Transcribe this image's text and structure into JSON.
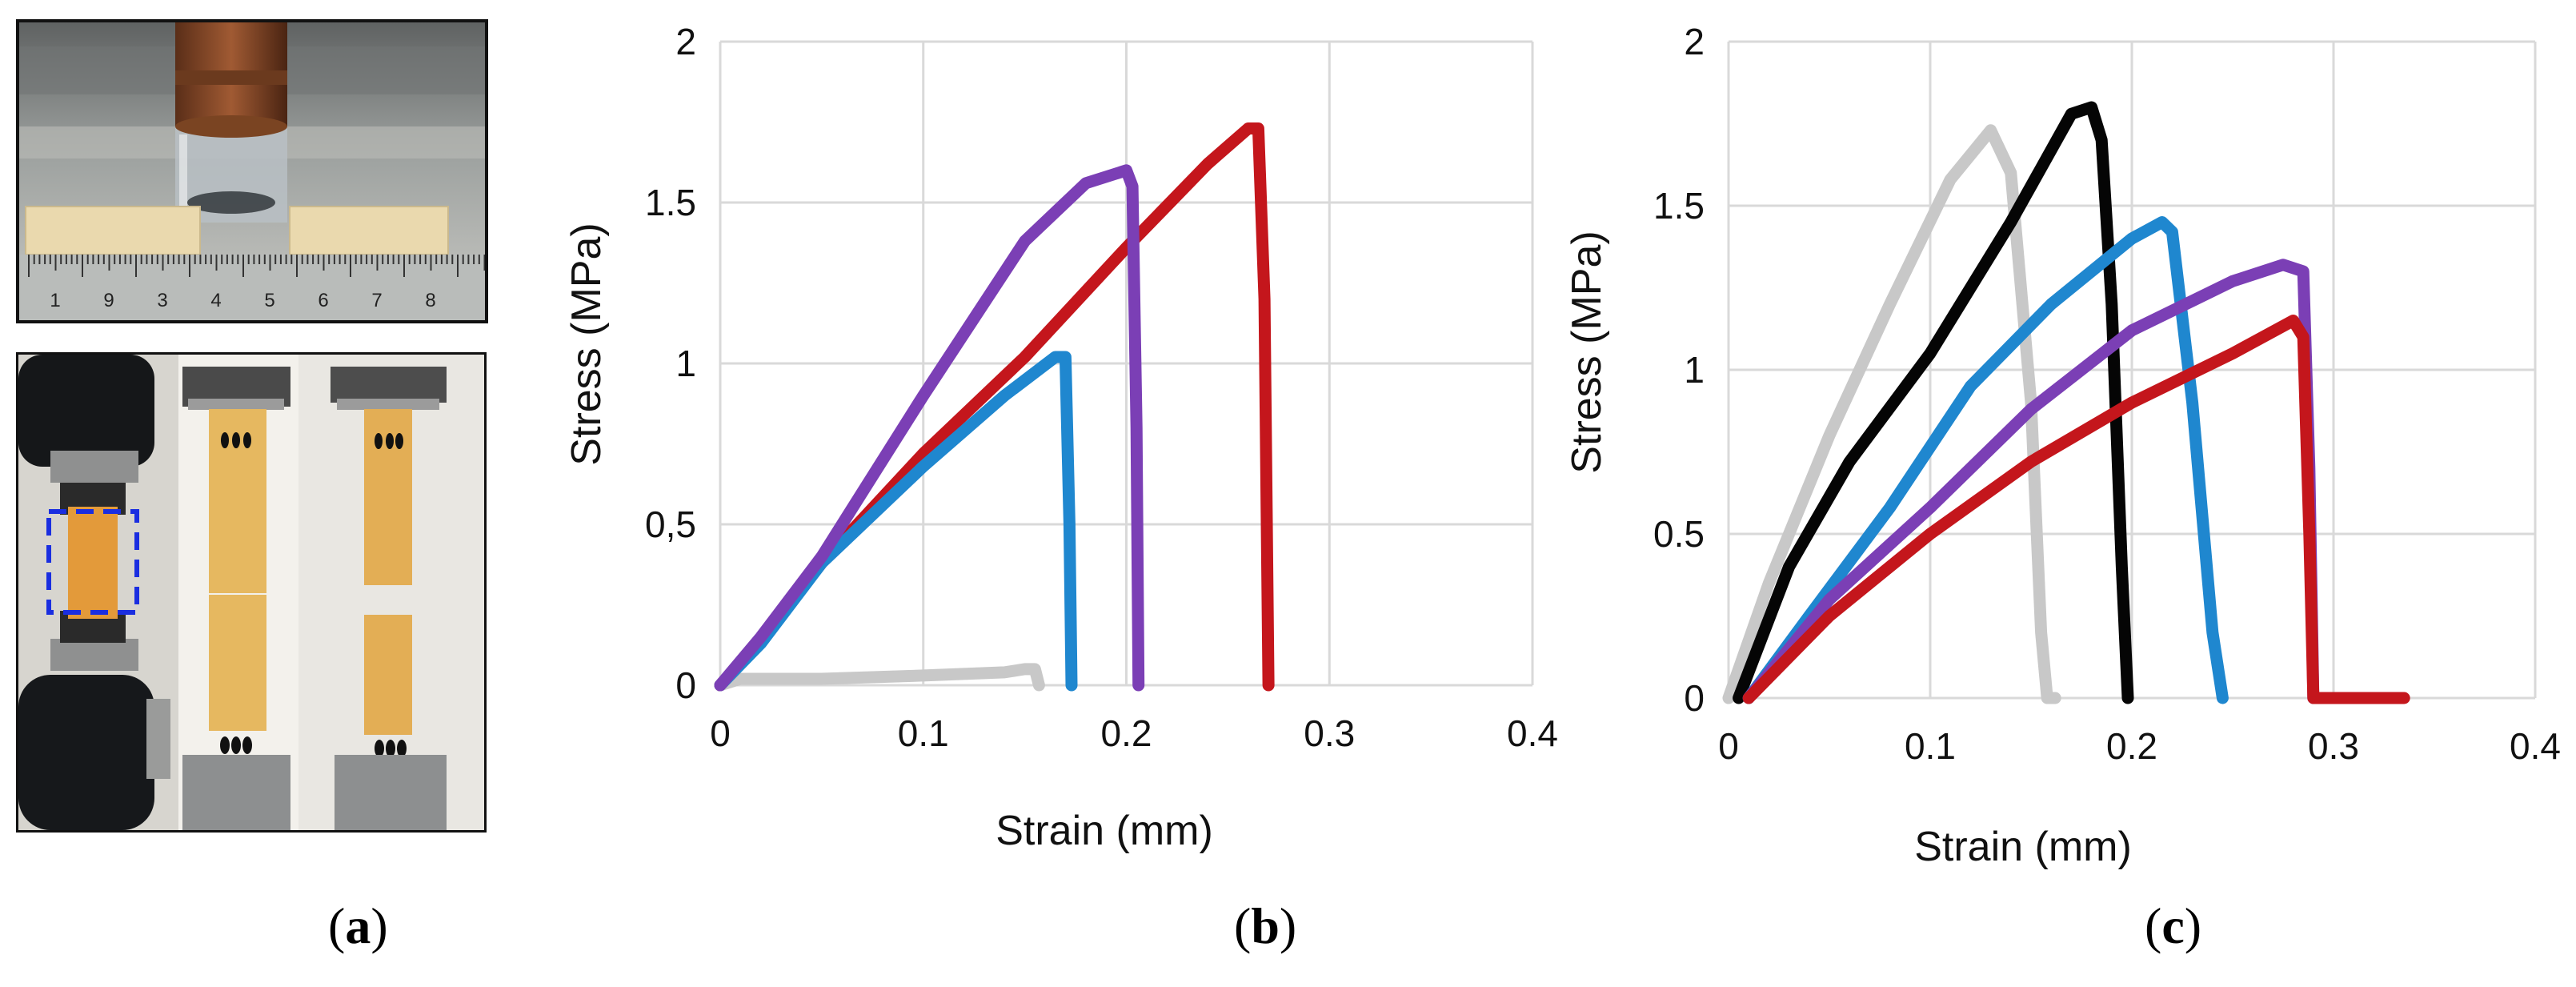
{
  "panels": {
    "a": {
      "label_open": "(",
      "label_letter": "a",
      "label_close": ")",
      "ruler_numbers": [
        "1",
        "9",
        "3",
        "4",
        "5",
        "6",
        "7",
        "8"
      ]
    },
    "b": {
      "label_open": "(",
      "label_letter": "b",
      "label_close": ")"
    },
    "c": {
      "label_open": "(",
      "label_letter": "c",
      "label_close": ")"
    }
  },
  "colors": {
    "gray": "#c8c8c8",
    "purple": "#7b3fb5",
    "red": "#c4161c",
    "blue": "#1f87cf",
    "black": "#050505",
    "grid": "#d9d9d9",
    "specimen": "#e0a34a",
    "dashed_box": "#1a2ee0"
  },
  "chart_data": [
    {
      "id": "b",
      "type": "line",
      "xlabel": "Strain (mm)",
      "ylabel": "Stress (MPa)",
      "xlim": [
        0,
        0.4
      ],
      "ylim": [
        0,
        2
      ],
      "xticks": [
        0,
        0.1,
        0.2,
        0.3,
        0.4
      ],
      "xtick_labels": [
        "0",
        "0.1",
        "0.2",
        "0.3",
        "0.4"
      ],
      "yticks": [
        0,
        0.5,
        1,
        1.5,
        2
      ],
      "ytick_labels": [
        "0",
        "0,5",
        "1",
        "1.5",
        "2"
      ],
      "series": [
        {
          "name": "gray",
          "color": "#c8c8c8",
          "x": [
            0,
            0.01,
            0.05,
            0.1,
            0.14,
            0.15,
            0.155,
            0.157
          ],
          "y": [
            0,
            0.02,
            0.02,
            0.03,
            0.04,
            0.05,
            0.05,
            0
          ]
        },
        {
          "name": "red",
          "color": "#c4161c",
          "x": [
            0,
            0.02,
            0.05,
            0.1,
            0.15,
            0.2,
            0.24,
            0.26,
            0.265,
            0.268,
            0.27
          ],
          "y": [
            0,
            0.14,
            0.38,
            0.72,
            1.02,
            1.36,
            1.62,
            1.73,
            1.73,
            1.2,
            0
          ]
        },
        {
          "name": "blue",
          "color": "#1f87cf",
          "x": [
            0,
            0.02,
            0.05,
            0.1,
            0.14,
            0.165,
            0.17,
            0.172,
            0.173
          ],
          "y": [
            0,
            0.13,
            0.38,
            0.68,
            0.9,
            1.02,
            1.02,
            0.5,
            0
          ]
        },
        {
          "name": "purple",
          "color": "#7b3fb5",
          "x": [
            0,
            0.02,
            0.05,
            0.1,
            0.15,
            0.18,
            0.2,
            0.203,
            0.205,
            0.206
          ],
          "y": [
            0,
            0.15,
            0.4,
            0.9,
            1.38,
            1.56,
            1.6,
            1.55,
            0.8,
            0
          ]
        }
      ]
    },
    {
      "id": "c",
      "type": "line",
      "xlabel": "Strain (mm)",
      "ylabel": "Stress (MPa)",
      "xlim": [
        0,
        0.4
      ],
      "ylim": [
        0,
        2
      ],
      "xticks": [
        0,
        0.1,
        0.2,
        0.3,
        0.4
      ],
      "xtick_labels": [
        "0",
        "0.1",
        "0.2",
        "0.3",
        "0.4"
      ],
      "yticks": [
        0,
        0.5,
        1,
        1.5,
        2
      ],
      "ytick_labels": [
        "0",
        "0.5",
        "1",
        "1.5",
        "2"
      ],
      "series": [
        {
          "name": "gray",
          "color": "#c8c8c8",
          "x": [
            0,
            0.02,
            0.05,
            0.08,
            0.11,
            0.13,
            0.14,
            0.15,
            0.155,
            0.158,
            0.162
          ],
          "y": [
            0,
            0.35,
            0.8,
            1.2,
            1.58,
            1.73,
            1.6,
            0.9,
            0.2,
            0,
            0
          ]
        },
        {
          "name": "black",
          "color": "#050505",
          "x": [
            0.005,
            0.03,
            0.06,
            0.1,
            0.14,
            0.17,
            0.18,
            0.185,
            0.19,
            0.195,
            0.198
          ],
          "y": [
            0,
            0.4,
            0.72,
            1.05,
            1.45,
            1.78,
            1.8,
            1.7,
            1.2,
            0.4,
            0
          ]
        },
        {
          "name": "blue",
          "color": "#1f87cf",
          "x": [
            0.01,
            0.04,
            0.08,
            0.12,
            0.16,
            0.2,
            0.215,
            0.22,
            0.23,
            0.24,
            0.245
          ],
          "y": [
            0,
            0.25,
            0.58,
            0.95,
            1.2,
            1.4,
            1.45,
            1.42,
            0.9,
            0.2,
            0
          ]
        },
        {
          "name": "purple",
          "color": "#7b3fb5",
          "x": [
            0.01,
            0.05,
            0.1,
            0.15,
            0.2,
            0.25,
            0.275,
            0.285,
            0.288,
            0.29
          ],
          "y": [
            0,
            0.3,
            0.58,
            0.88,
            1.12,
            1.27,
            1.32,
            1.3,
            0.7,
            0
          ]
        },
        {
          "name": "red",
          "color": "#c4161c",
          "x": [
            0.01,
            0.05,
            0.1,
            0.15,
            0.2,
            0.25,
            0.28,
            0.285,
            0.288,
            0.29,
            0.31,
            0.335
          ],
          "y": [
            0,
            0.25,
            0.5,
            0.72,
            0.9,
            1.05,
            1.15,
            1.1,
            0.5,
            0,
            0,
            0
          ]
        }
      ]
    }
  ]
}
